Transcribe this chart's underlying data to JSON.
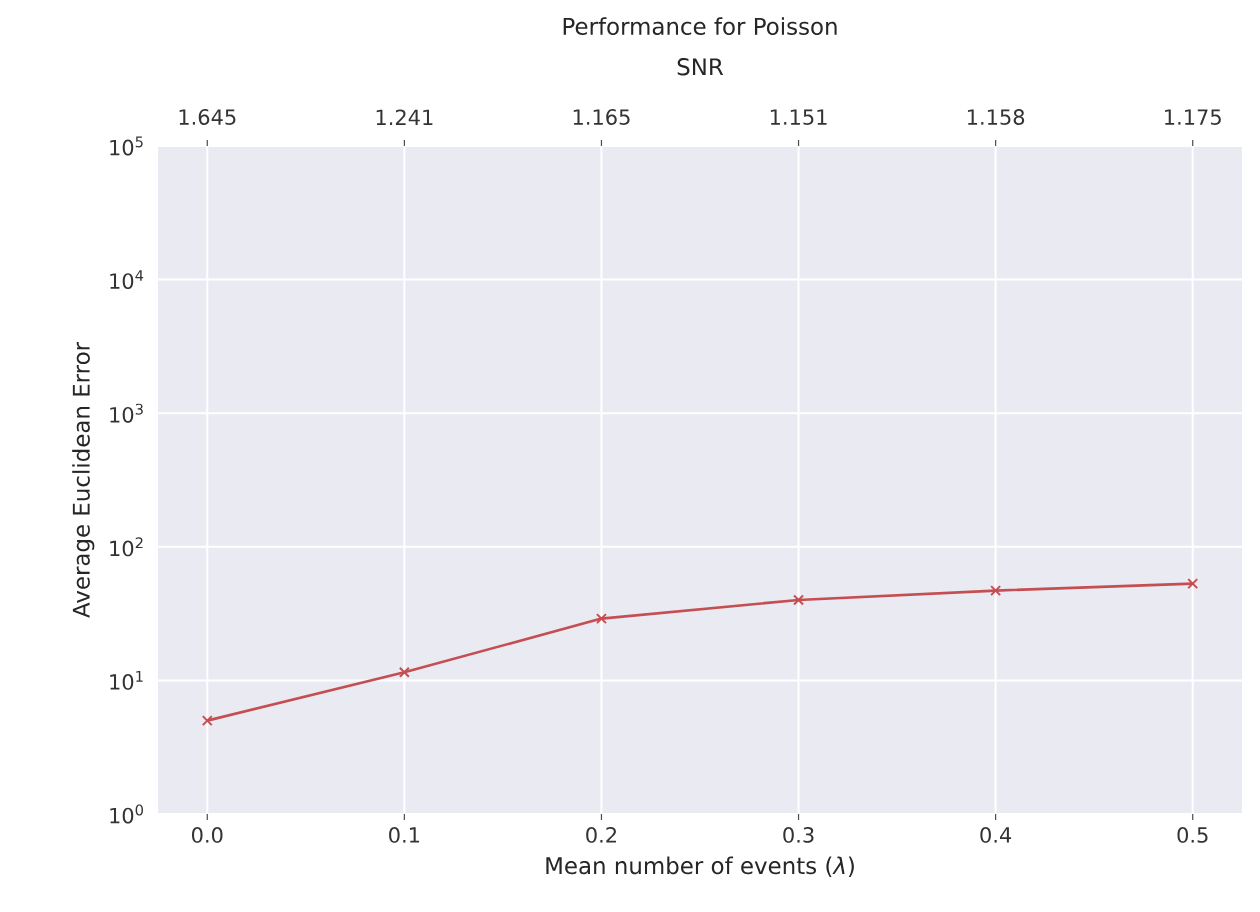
{
  "chart_data": {
    "type": "line",
    "title": "Performance for Poisson",
    "xlabel": "Mean number of events (*λ*)",
    "ylabel": "Average Euclidean Error",
    "x2label": "SNR",
    "x": [
      0,
      0.1,
      0.2,
      0.3,
      0.4,
      0.5
    ],
    "series": [
      {
        "color": "#c44e52",
        "values": [
          5.0,
          11.5,
          29,
          40,
          47,
          53
        ]
      }
    ],
    "xlim": [
      -0.025,
      0.525
    ],
    "xticks": [
      {
        "value": 0,
        "label": "0.0"
      },
      {
        "value": 0.1,
        "label": "0.1"
      },
      {
        "value": 0.2,
        "label": "0.2"
      },
      {
        "value": 0.3,
        "label": "0.3"
      },
      {
        "value": 0.4,
        "label": "0.4"
      },
      {
        "value": 0.5,
        "label": "0.5"
      }
    ],
    "annotations": [
      {
        "text": "1.645",
        "x": 0
      },
      {
        "text": "1.241",
        "x": 0.1
      },
      {
        "text": "1.165",
        "x": 0.2
      },
      {
        "text": "1.151",
        "x": 0.3
      },
      {
        "text": "1.158",
        "x": 0.4
      },
      {
        "text": "1.175",
        "x": 0.5
      }
    ],
    "ylim": [
      1,
      100000
    ],
    "yticks": [
      {
        "value": 1,
        "label": "10$^{0}$"
      },
      {
        "value": 10,
        "label": "10$^{1}$"
      },
      {
        "value": 100,
        "label": "10$^{2}$"
      },
      {
        "value": 1000,
        "label": "10$^{3}$"
      },
      {
        "value": 10000,
        "label": "10$^{4}$"
      },
      {
        "value": 100000,
        "label": "10$^{5}$"
      }
    ],
    "log": "y",
    "grid": true,
    "marker": "cross",
    "line_style": "solid"
  }
}
